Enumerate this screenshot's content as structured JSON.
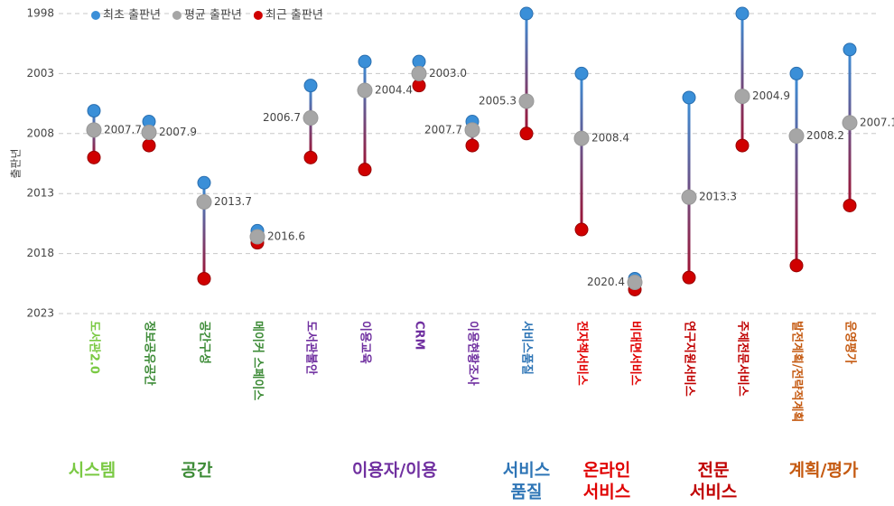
{
  "chart_data": {
    "type": "dumbbell",
    "y_axis_label": "출판년",
    "categories": [
      "도서관2.0",
      "정보공유공간",
      "공간구성",
      "메이커 스페이스",
      "도서관불안",
      "이용교육",
      "CRM",
      "이용현황조사",
      "서비스품질",
      "전자책서비스",
      "비대면서비스",
      "연구지원서비스",
      "주제전문서비스",
      "발전계획/전략적계획",
      "운영평가"
    ],
    "category_colors": [
      "#7ac943",
      "#3d8b37",
      "#3d8b37",
      "#3d8b37",
      "#7030a0",
      "#7030a0",
      "#7030a0",
      "#7030a0",
      "#2e75b6",
      "#e00000",
      "#e00000",
      "#c00000",
      "#c00000",
      "#c55a11",
      "#c55a11"
    ],
    "series": [
      {
        "name": "최초 출판년",
        "color": "#3a8fd8",
        "values": [
          2006.1,
          2007.0,
          2012.1,
          2016.1,
          2004.0,
          2002.0,
          2002.0,
          2007.0,
          1998.0,
          2003.0,
          2020.1,
          2005.0,
          1998.0,
          2003.0,
          2001.0
        ]
      },
      {
        "name": "평균 출판년",
        "color": "#a6a6a6",
        "values": [
          2007.7,
          2007.9,
          2013.7,
          2016.6,
          2006.7,
          2004.4,
          2003.0,
          2007.7,
          2005.3,
          2008.4,
          2020.4,
          2013.3,
          2004.9,
          2008.2,
          2007.1
        ],
        "value_labels": [
          "2007.7",
          "2007.9",
          "2013.7",
          "2016.6",
          "2006.7",
          "2004.4",
          "2003.0",
          "2007.7",
          "2005.3",
          "2008.4",
          "2020.4",
          "2013.3",
          "2004.9",
          "2008.2",
          "2007.1"
        ]
      },
      {
        "name": "최근 출판년",
        "color": "#d00000",
        "values": [
          2010.0,
          2009.0,
          2020.1,
          2017.1,
          2010.0,
          2011.0,
          2004.0,
          2009.0,
          2008.0,
          2016.0,
          2021.0,
          2020.0,
          2009.0,
          2019.0,
          2014.0
        ]
      }
    ],
    "ylim": [
      1998,
      2023
    ],
    "yticks": [
      1998,
      2003,
      2008,
      2013,
      2018,
      2023
    ],
    "inverted_y": true,
    "grid": true,
    "legend": "top-left",
    "groups": [
      {
        "lines": [
          "시스템"
        ],
        "color": "#7ac943"
      },
      {
        "lines": [
          "공간"
        ],
        "color": "#3d8b37"
      },
      {
        "lines": [
          "이용자/이용"
        ],
        "color": "#7030a0"
      },
      {
        "lines": [
          "서비스",
          "품질"
        ],
        "color": "#2e75b6"
      },
      {
        "lines": [
          "온라인",
          "서비스"
        ],
        "color": "#e00000"
      },
      {
        "lines": [
          "전문",
          "서비스"
        ],
        "color": "#c00000"
      },
      {
        "lines": [
          "계획/평가"
        ],
        "color": "#c55a11"
      }
    ]
  }
}
